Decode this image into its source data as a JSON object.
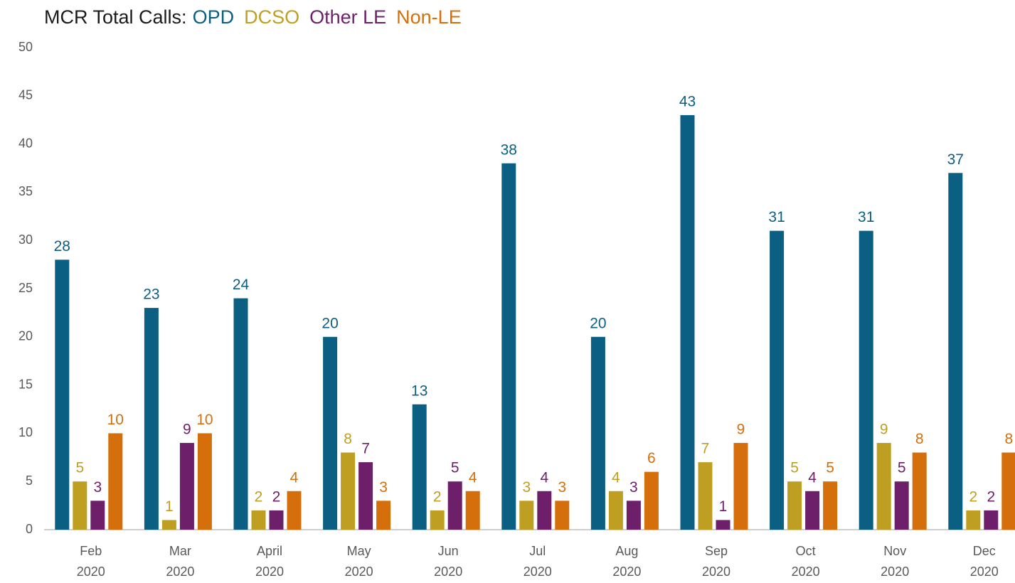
{
  "chart_data": {
    "type": "bar",
    "title": "MCR Total Calls:",
    "categories": [
      "Feb 2020",
      "Mar 2020",
      "April 2020",
      "May 2020",
      "Jun 2020",
      "Jul 2020",
      "Aug 2020",
      "Sep 2020",
      "Oct 2020",
      "Nov 2020",
      "Dec 2020"
    ],
    "series": [
      {
        "name": "OPD",
        "color": "#0b5f82",
        "values": [
          28,
          23,
          24,
          20,
          13,
          38,
          20,
          43,
          31,
          31,
          37
        ]
      },
      {
        "name": "DCSO",
        "color": "#bf9f22",
        "values": [
          5,
          1,
          2,
          8,
          2,
          3,
          4,
          7,
          5,
          9,
          2
        ]
      },
      {
        "name": "Other LE",
        "color": "#6e1f6a",
        "values": [
          3,
          9,
          2,
          7,
          5,
          4,
          3,
          1,
          4,
          5,
          2
        ]
      },
      {
        "name": "Non-LE",
        "color": "#d46f0c",
        "values": [
          10,
          10,
          4,
          3,
          4,
          3,
          6,
          9,
          5,
          8,
          8
        ]
      }
    ],
    "ylim": [
      0,
      50
    ],
    "yticks": [
      0,
      5,
      10,
      15,
      20,
      25,
      30,
      35,
      40,
      45,
      50
    ],
    "grid": false
  }
}
